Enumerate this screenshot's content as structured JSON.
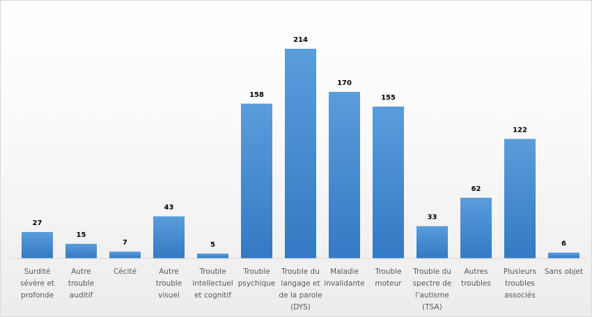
{
  "chart_data": {
    "type": "bar",
    "title": "",
    "xlabel": "",
    "ylabel": "",
    "ylim": [
      0,
      230
    ],
    "grid": false,
    "bar_color": "#3E87CF",
    "categories": [
      [
        "Surdité",
        "sévère et",
        "profonde"
      ],
      [
        "Autre",
        "trouble",
        "auditif"
      ],
      [
        "Cécité"
      ],
      [
        "Autre",
        "trouble",
        "visuel"
      ],
      [
        "Trouble",
        "intellectuel",
        "et cognitif"
      ],
      [
        "Trouble",
        "psychique"
      ],
      [
        "Trouble du",
        "langage et",
        "de la parole",
        "(DYS)"
      ],
      [
        "Maladie",
        "invalidante"
      ],
      [
        "Trouble",
        "moteur"
      ],
      [
        "Trouble du",
        "spectre de",
        "l’autisme",
        "(TSA)"
      ],
      [
        "Autres",
        "troubles"
      ],
      [
        "Plusieurs",
        "troubles",
        "associés"
      ],
      [
        "Sans objet"
      ]
    ],
    "values": [
      27,
      15,
      7,
      43,
      5,
      158,
      214,
      170,
      155,
      33,
      62,
      122,
      6
    ]
  }
}
